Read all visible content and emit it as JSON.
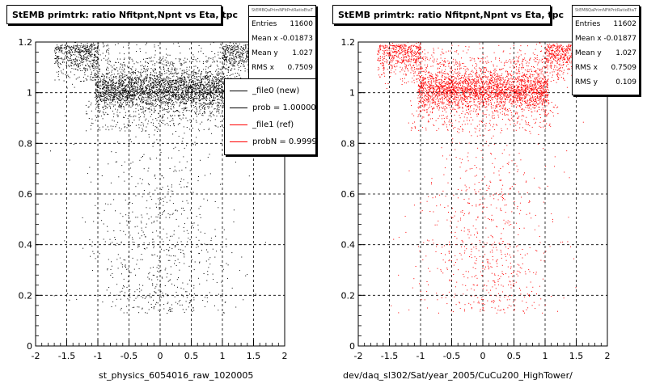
{
  "chart_data": [
    {
      "type": "scatter",
      "title": "StEMB primtrk: ratio Nfitpnt,Npnt vs Eta, tpc",
      "xlabel": "st_physics_6054016_raw_1020005",
      "ylabel": "",
      "xlim": [
        -2,
        2
      ],
      "ylim": [
        0,
        1.2
      ],
      "x_ticks": [
        "-2",
        "-1.5",
        "-1",
        "-0.5",
        "0",
        "0.5",
        "1",
        "1.5",
        "2"
      ],
      "y_ticks": [
        "0",
        "0.2",
        "0.4",
        "0.6",
        "0.8",
        "1",
        "1.2"
      ],
      "grid": true,
      "marker_color": "#000000",
      "stats": {
        "name": "StEMBQaPrimNFitPntRatioEtaT",
        "entries_label": "Entries",
        "entries": "11600",
        "meanx_label": "Mean x",
        "meanx": "-0.01873",
        "meany_label": "Mean y",
        "meany": "1.027",
        "rmsx_label": "RMS x",
        "rmsx": "0.7509"
      },
      "legend": {
        "placement": "top-right",
        "entries": [
          {
            "label": "_file0 (new)",
            "color": "#000000"
          },
          {
            "label": "prob = 1.000000",
            "color": "#000000"
          },
          {
            "label": "_file1 (ref)",
            "color": "#ff0000"
          },
          {
            "label": "probN = 0.999940",
            "color": "#ff0000"
          }
        ]
      }
    },
    {
      "type": "scatter",
      "title": "StEMB primtrk: ratio Nfitpnt,Npnt vs Eta, tpc",
      "xlabel": "dev/daq_sl302/Sat/year_2005/CuCu200_HighTower/",
      "ylabel": "",
      "xlim": [
        -2,
        2
      ],
      "ylim": [
        0,
        1.2
      ],
      "x_ticks": [
        "-2",
        "-1.5",
        "-1",
        "-0.5",
        "0",
        "0.5",
        "1",
        "1.5",
        "2"
      ],
      "y_ticks": [
        "0",
        "0.2",
        "0.4",
        "0.6",
        "0.8",
        "1",
        "1.2"
      ],
      "grid": true,
      "marker_color": "#ff0000",
      "stats": {
        "name": "StEMBQaPrimNFitPntRatioEtaT",
        "entries_label": "Entries",
        "entries": "11602",
        "meanx_label": "Mean x",
        "meanx": "-0.01877",
        "meany_label": "Mean y",
        "meany": "1.027",
        "rmsx_label": "RMS x",
        "rmsx": "0.7509",
        "rmsy_label": "RMS y",
        "rmsy": "0.109"
      }
    }
  ]
}
